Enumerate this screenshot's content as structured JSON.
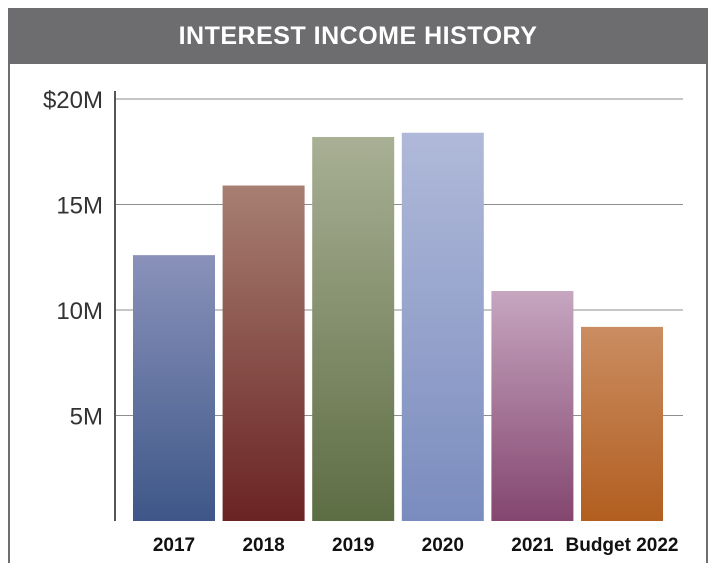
{
  "chart_data": {
    "type": "bar",
    "title": "INTEREST INCOME HISTORY",
    "xlabel": "",
    "ylabel": "",
    "categories": [
      "2017",
      "2018",
      "2019",
      "2020",
      "2021",
      "Budget 2022"
    ],
    "values": [
      12.6,
      15.9,
      18.2,
      18.4,
      10.9,
      9.2
    ],
    "ylim": [
      0,
      20
    ],
    "yticks": [
      5,
      10,
      15,
      20
    ],
    "ytick_labels": [
      "5M",
      "10M",
      "15M",
      "$20M"
    ],
    "grid": true,
    "legend": "none",
    "bar_gradients": [
      {
        "top": "#8a92ba",
        "bottom": "#3e5788"
      },
      {
        "top": "#a77f72",
        "bottom": "#6a2323"
      },
      {
        "top": "#a9b095",
        "bottom": "#5d6d43"
      },
      {
        "top": "#b0b9d9",
        "bottom": "#7a8cbe"
      },
      {
        "top": "#c6a6c0",
        "bottom": "#84466f"
      },
      {
        "top": "#ca8d61",
        "bottom": "#b25e20"
      }
    ],
    "grid_color": "#8e8e8e",
    "header_color": "#6d6d6f"
  }
}
